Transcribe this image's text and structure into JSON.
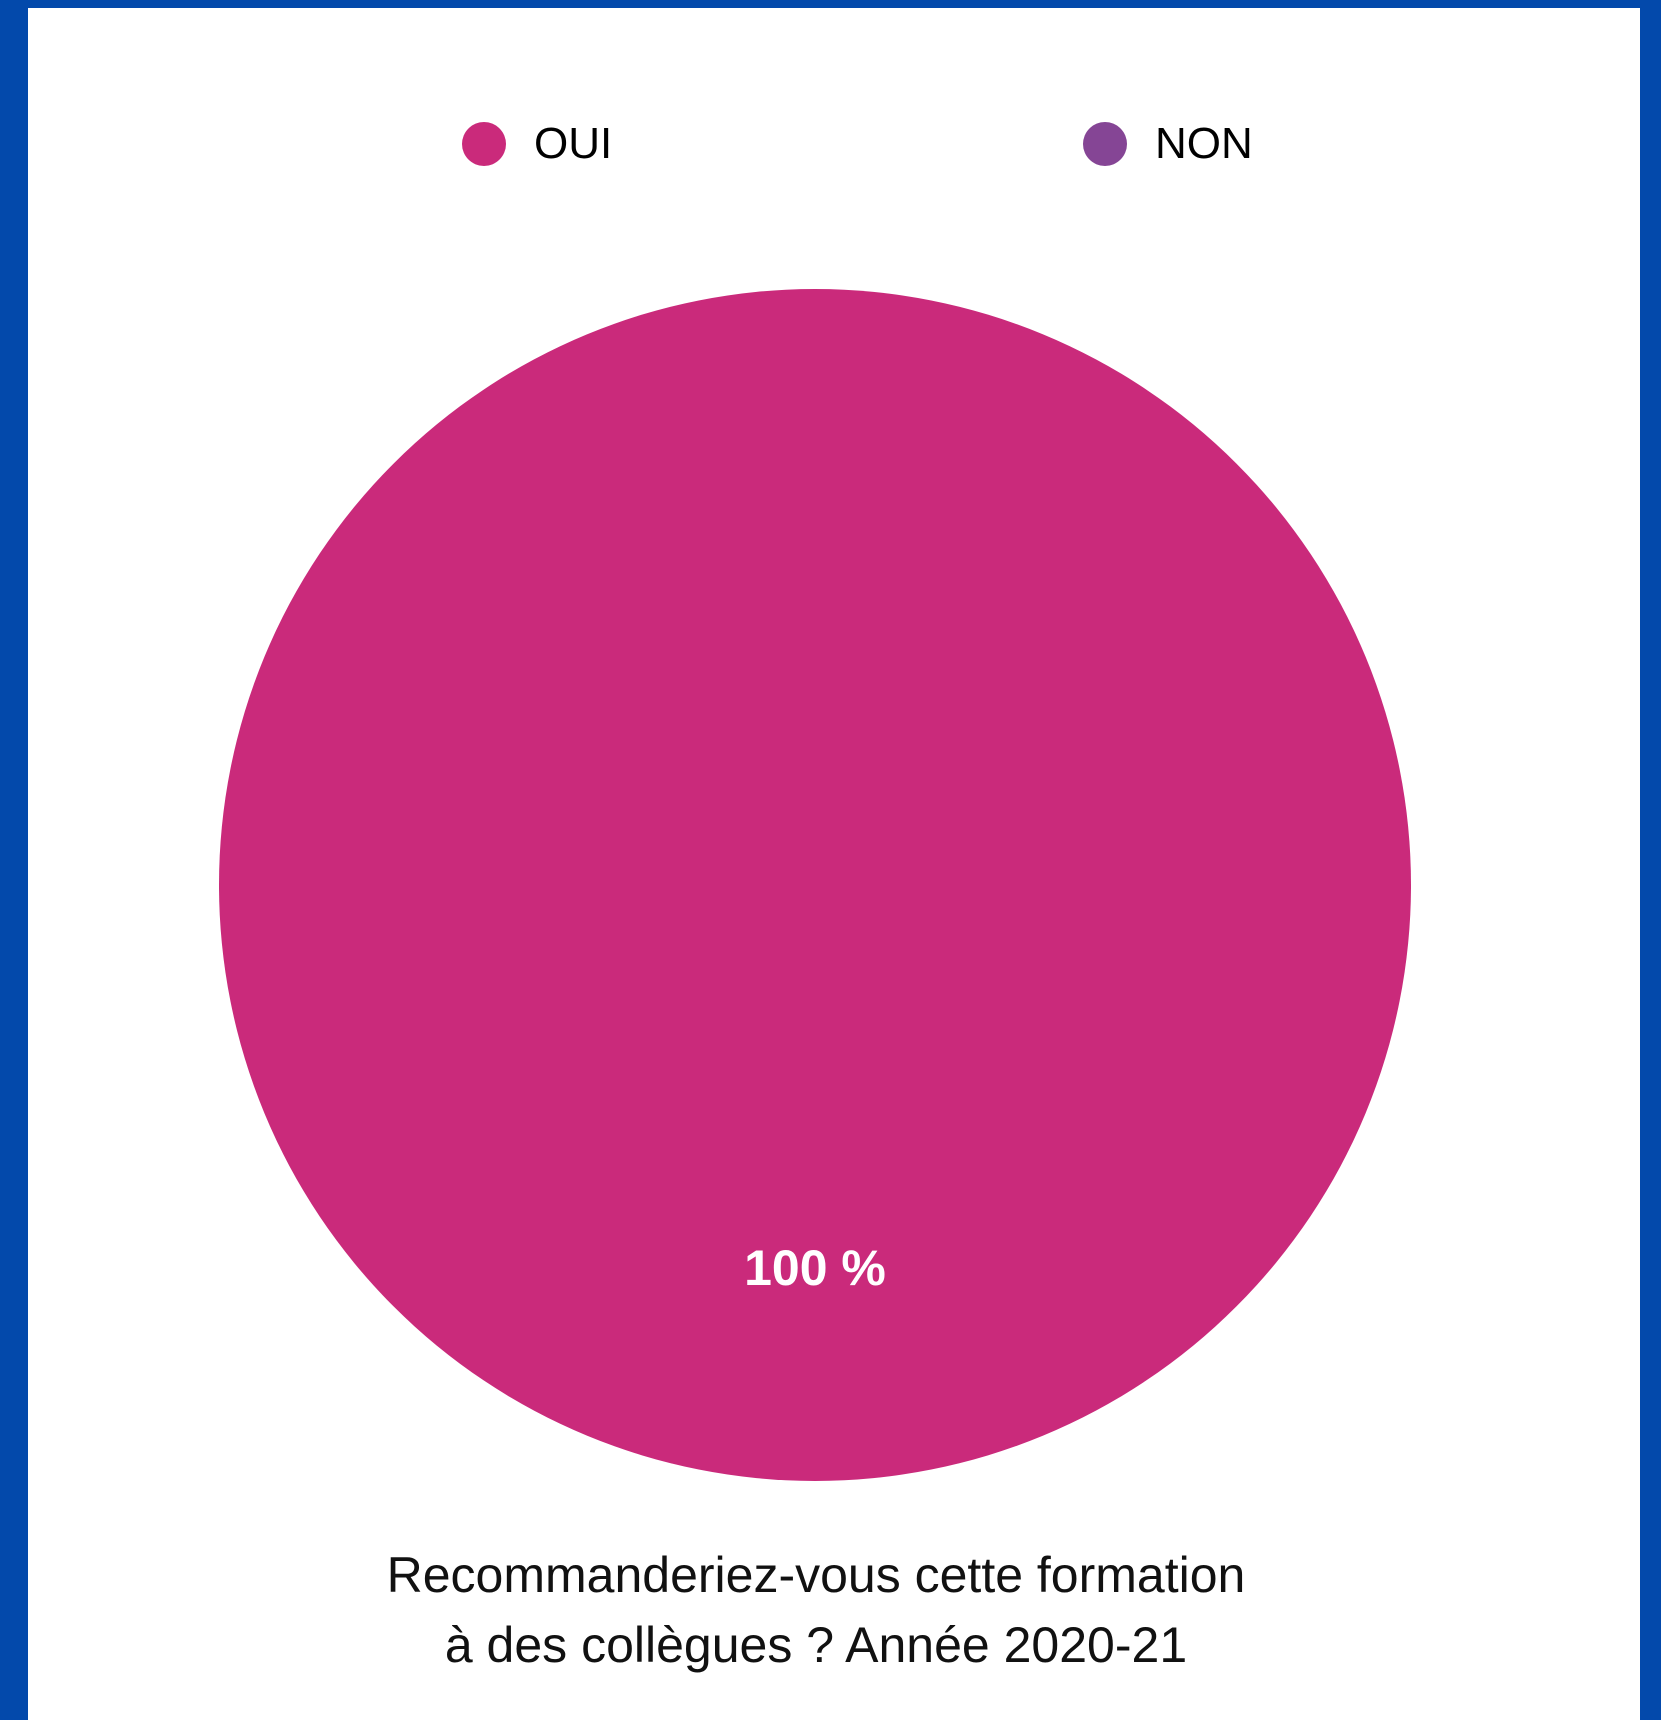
{
  "chart_data": {
    "type": "pie",
    "categories": [
      "OUI",
      "NON"
    ],
    "values": [
      100,
      0
    ],
    "data_labels": [
      "100 %"
    ],
    "title": "Recommanderiez-vous cette formation à des collègues ? Année 2020-21",
    "title_lines": [
      "Recommanderiez-vous cette formation",
      "à des collègues ? Année 2020-21"
    ],
    "legend_position": "top",
    "colors": [
      "#ca2a7b",
      "#854595"
    ]
  }
}
